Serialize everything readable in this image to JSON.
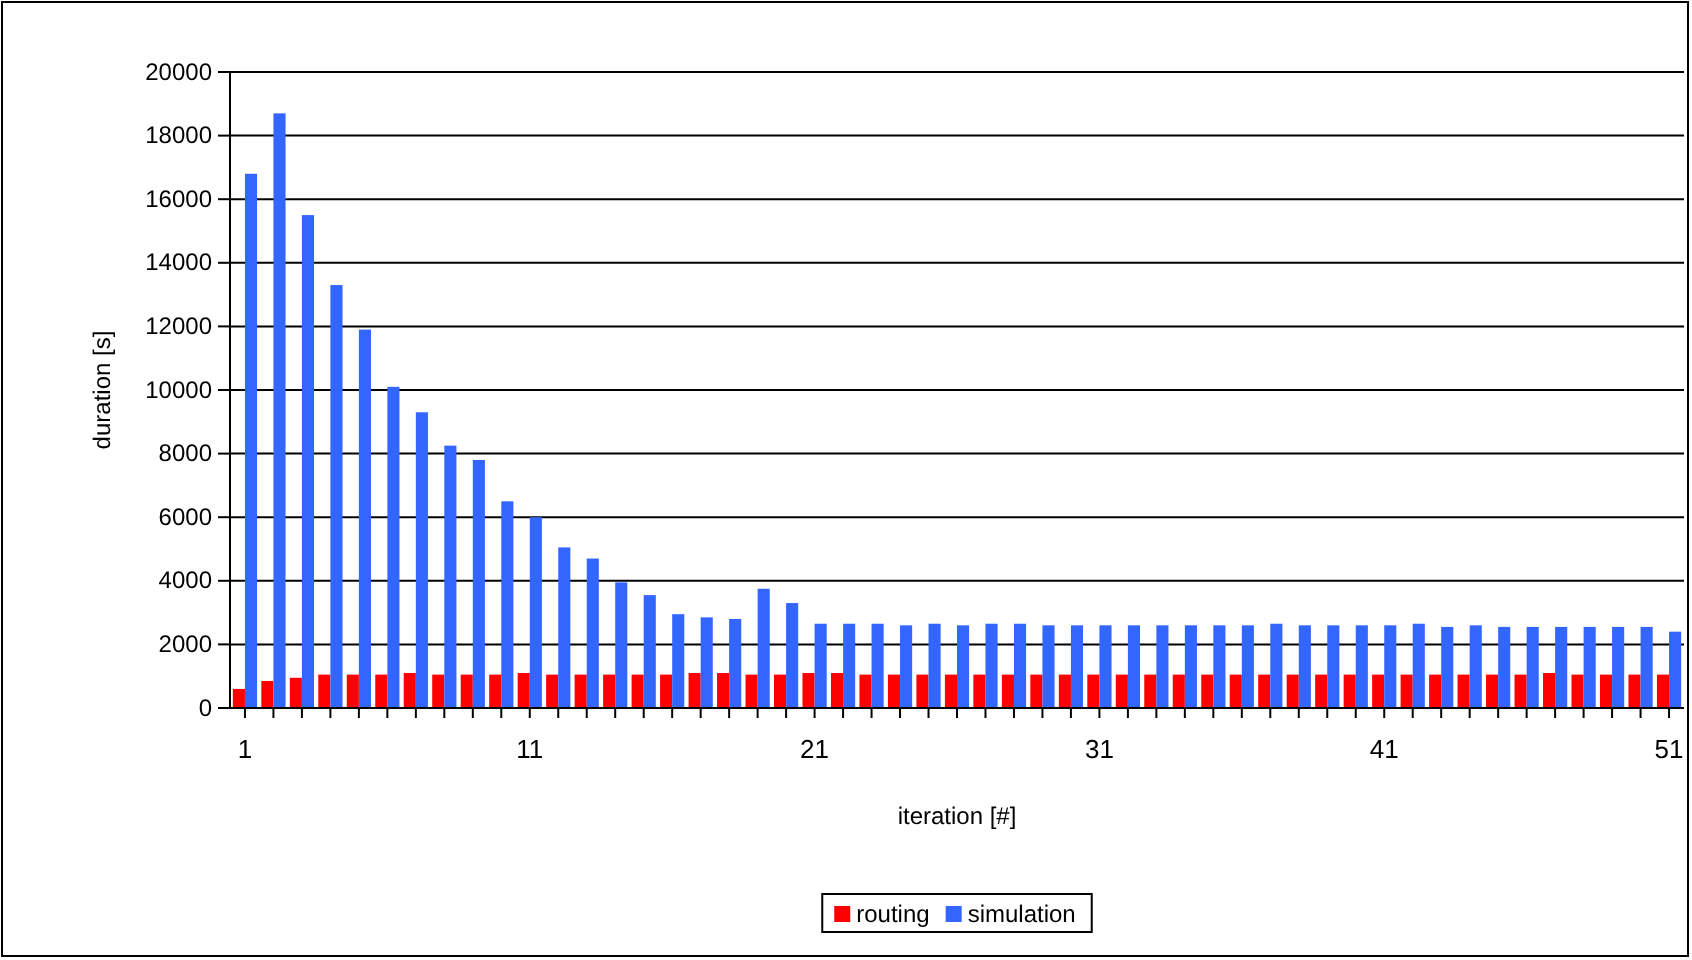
{
  "chart_data": {
    "type": "bar",
    "xlabel": "iteration [#]",
    "ylabel": "duration [s]",
    "categories": [
      "1",
      null,
      null,
      null,
      null,
      null,
      null,
      null,
      null,
      null,
      "11",
      null,
      null,
      null,
      null,
      null,
      null,
      null,
      null,
      null,
      "21",
      null,
      null,
      null,
      null,
      null,
      null,
      null,
      null,
      null,
      "31",
      null,
      null,
      null,
      null,
      null,
      null,
      null,
      null,
      null,
      "41",
      null,
      null,
      null,
      null,
      null,
      null,
      null,
      null,
      null,
      "51"
    ],
    "series": [
      {
        "name": "routing",
        "color": "#ff0000",
        "values": [
          600,
          850,
          950,
          1050,
          1050,
          1050,
          1100,
          1050,
          1050,
          1050,
          1100,
          1050,
          1050,
          1050,
          1050,
          1050,
          1100,
          1100,
          1050,
          1050,
          1100,
          1100,
          1050,
          1050,
          1050,
          1050,
          1050,
          1050,
          1050,
          1050,
          1050,
          1050,
          1050,
          1050,
          1050,
          1050,
          1050,
          1050,
          1050,
          1050,
          1050,
          1050,
          1050,
          1050,
          1050,
          1050,
          1100,
          1050,
          1050,
          1050,
          1050
        ]
      },
      {
        "name": "simulation",
        "color": "#3366ff",
        "values": [
          16800,
          18700,
          15500,
          13300,
          11900,
          10100,
          9300,
          8250,
          7800,
          6500,
          6000,
          5050,
          4700,
          3950,
          3550,
          2950,
          2850,
          2800,
          3750,
          3300,
          2650,
          2650,
          2650,
          2600,
          2650,
          2600,
          2650,
          2650,
          2600,
          2600,
          2600,
          2600,
          2600,
          2600,
          2600,
          2600,
          2650,
          2600,
          2600,
          2600,
          2600,
          2650,
          2550,
          2600,
          2550,
          2550,
          2550,
          2550,
          2550,
          2550,
          2400
        ]
      }
    ],
    "ylim": [
      0,
      20000
    ],
    "yticks": [
      0,
      2000,
      4000,
      6000,
      8000,
      10000,
      12000,
      14000,
      16000,
      18000,
      20000
    ],
    "grid": "y",
    "legend": "bottom"
  }
}
